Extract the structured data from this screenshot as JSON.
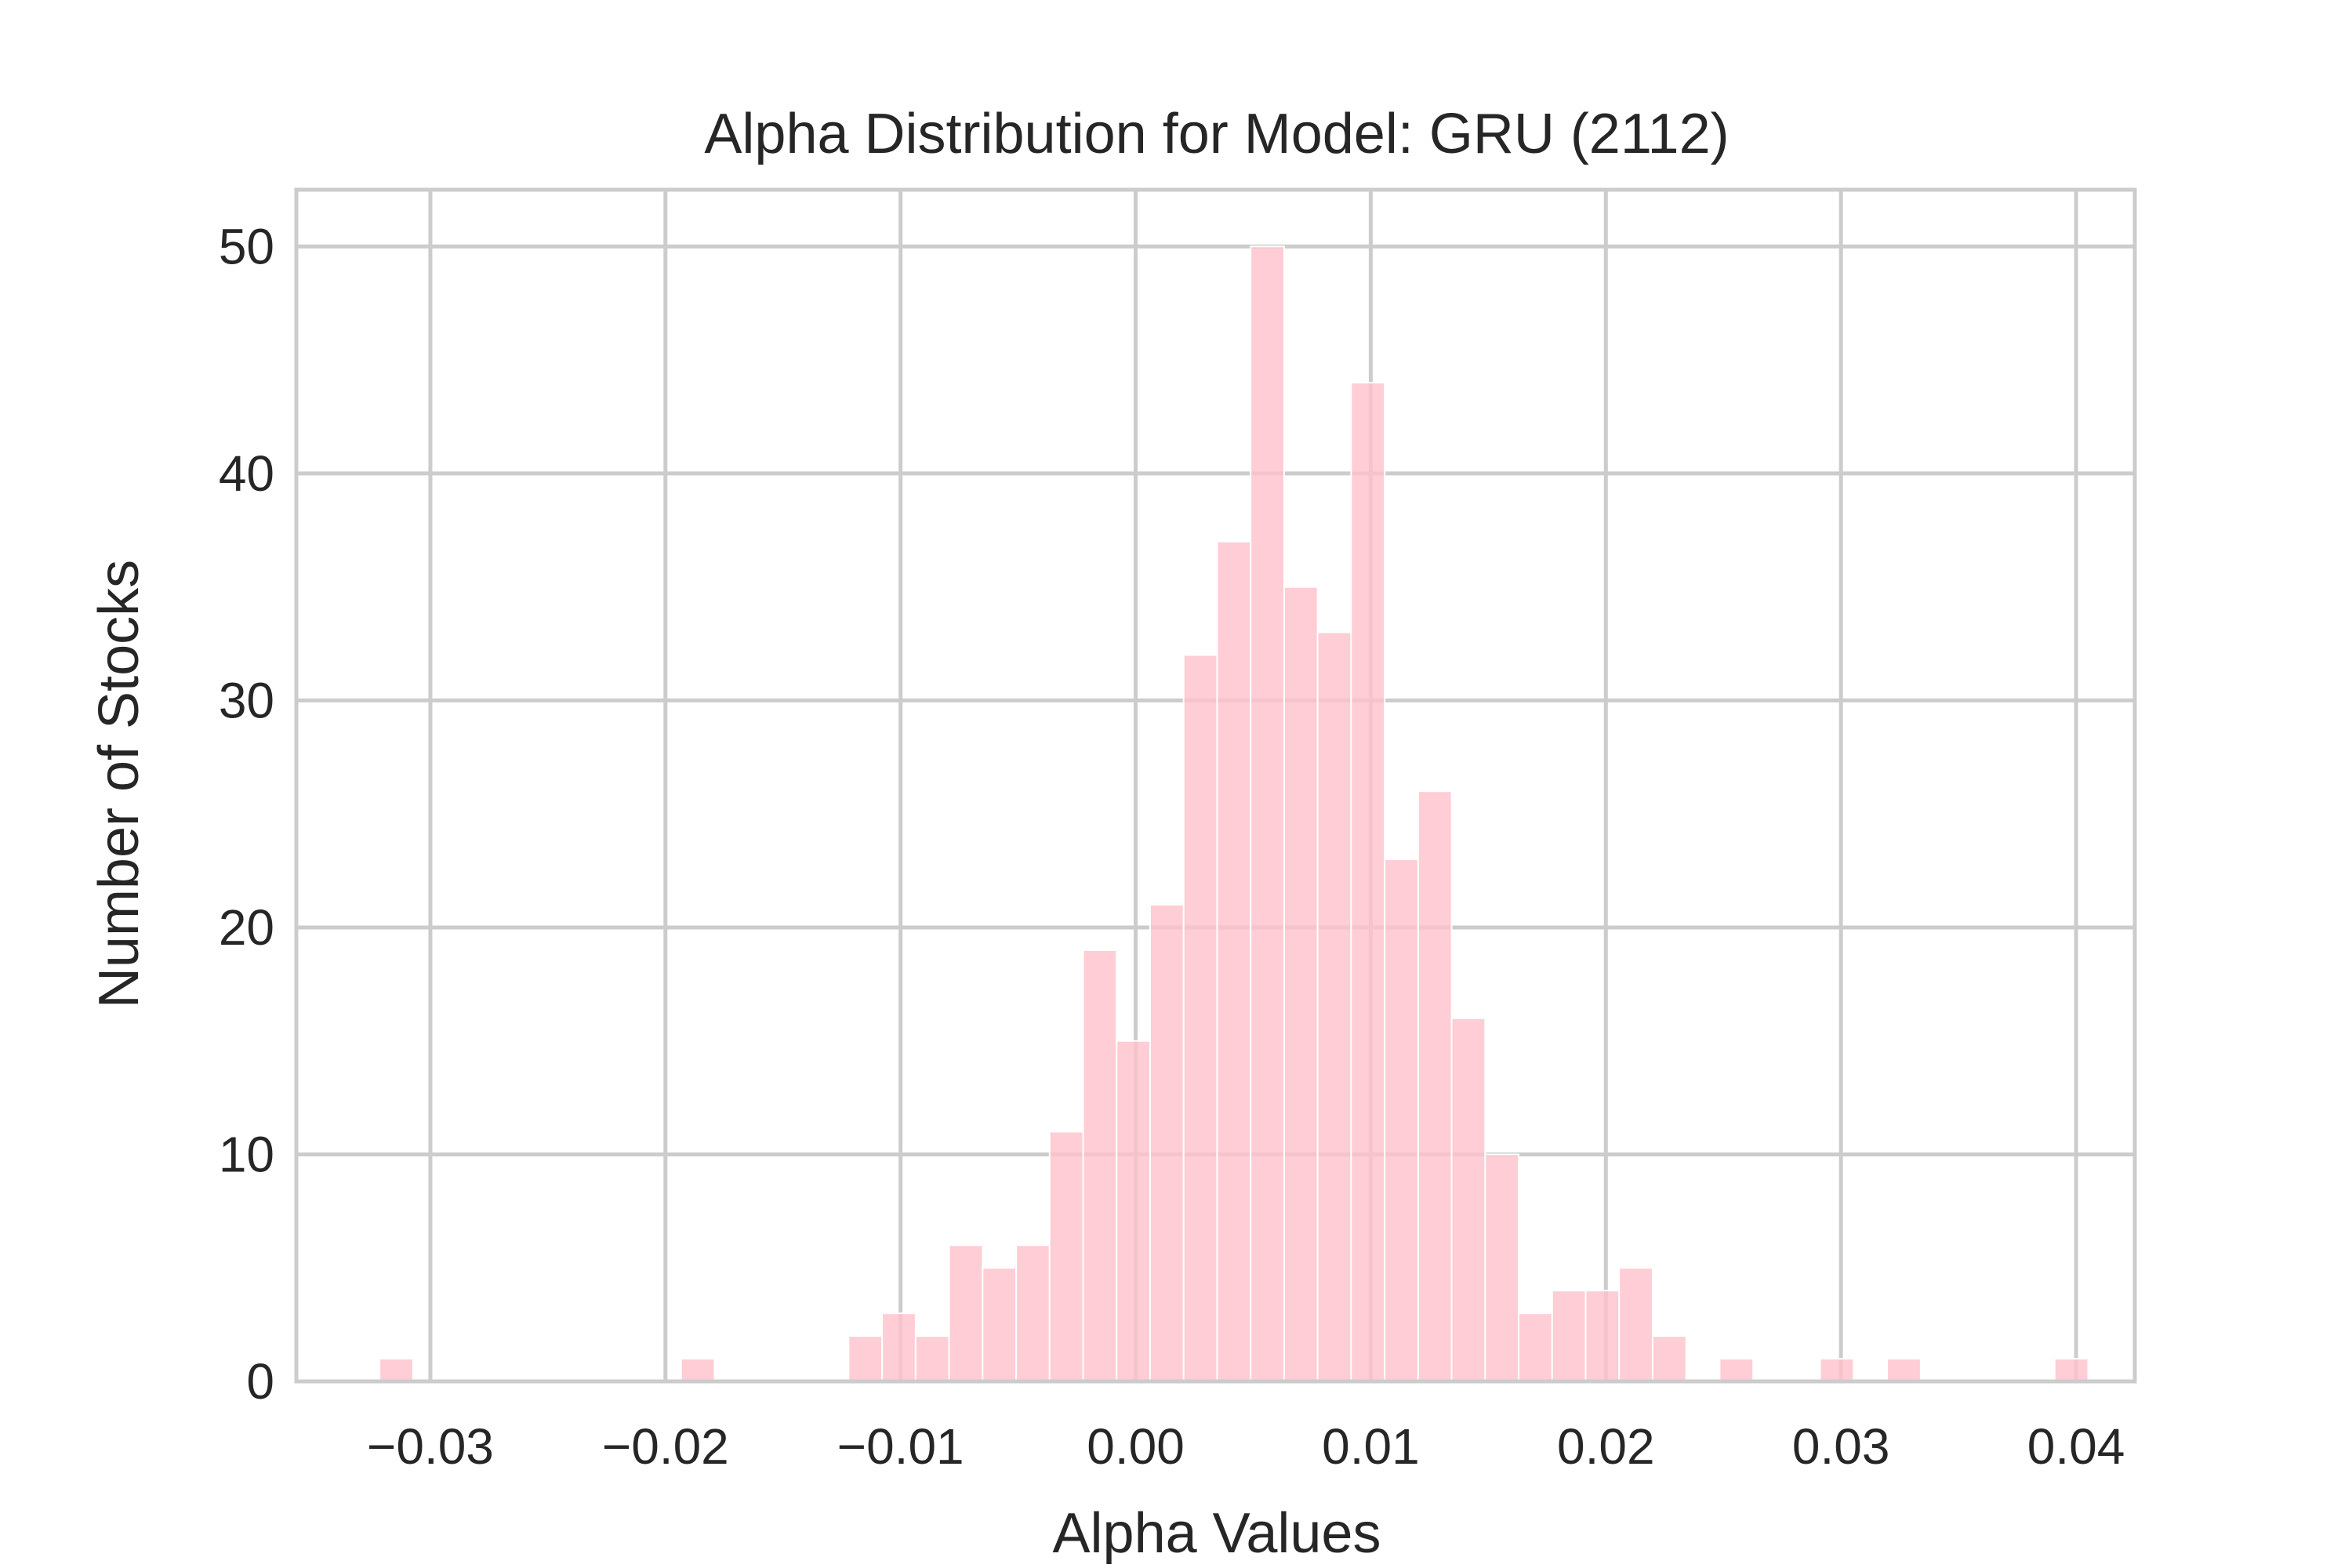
{
  "chart_data": {
    "type": "bar",
    "title": "Alpha Distribution for Model: GRU (2112)",
    "xlabel": "Alpha Values",
    "ylabel": "Number of Stocks",
    "xlim": [
      -0.0357,
      0.0425
    ],
    "ylim": [
      0,
      52.5
    ],
    "xticks": [
      -0.03,
      -0.02,
      -0.01,
      0.0,
      0.01,
      0.02,
      0.03,
      0.04
    ],
    "xtick_labels": [
      "−0.03",
      "−0.02",
      "−0.01",
      "0.00",
      "0.01",
      "0.02",
      "0.03",
      "0.04"
    ],
    "yticks": [
      0,
      10,
      20,
      30,
      40,
      50
    ],
    "ytick_labels": [
      "0",
      "10",
      "20",
      "30",
      "40",
      "50"
    ],
    "grid": true,
    "bar_color": "#ffc0cb",
    "bin_width": 0.001425,
    "bin_start": -0.03216,
    "counts": [
      1,
      0,
      0,
      0,
      0,
      0,
      0,
      0,
      0,
      1,
      0,
      0,
      0,
      0,
      2,
      3,
      2,
      6,
      5,
      6,
      11,
      19,
      15,
      21,
      32,
      37,
      50,
      35,
      33,
      44,
      23,
      26,
      16,
      10,
      3,
      4,
      4,
      5,
      2,
      0,
      1,
      0,
      0,
      1,
      0,
      1,
      0,
      0,
      0,
      0,
      1
    ]
  }
}
